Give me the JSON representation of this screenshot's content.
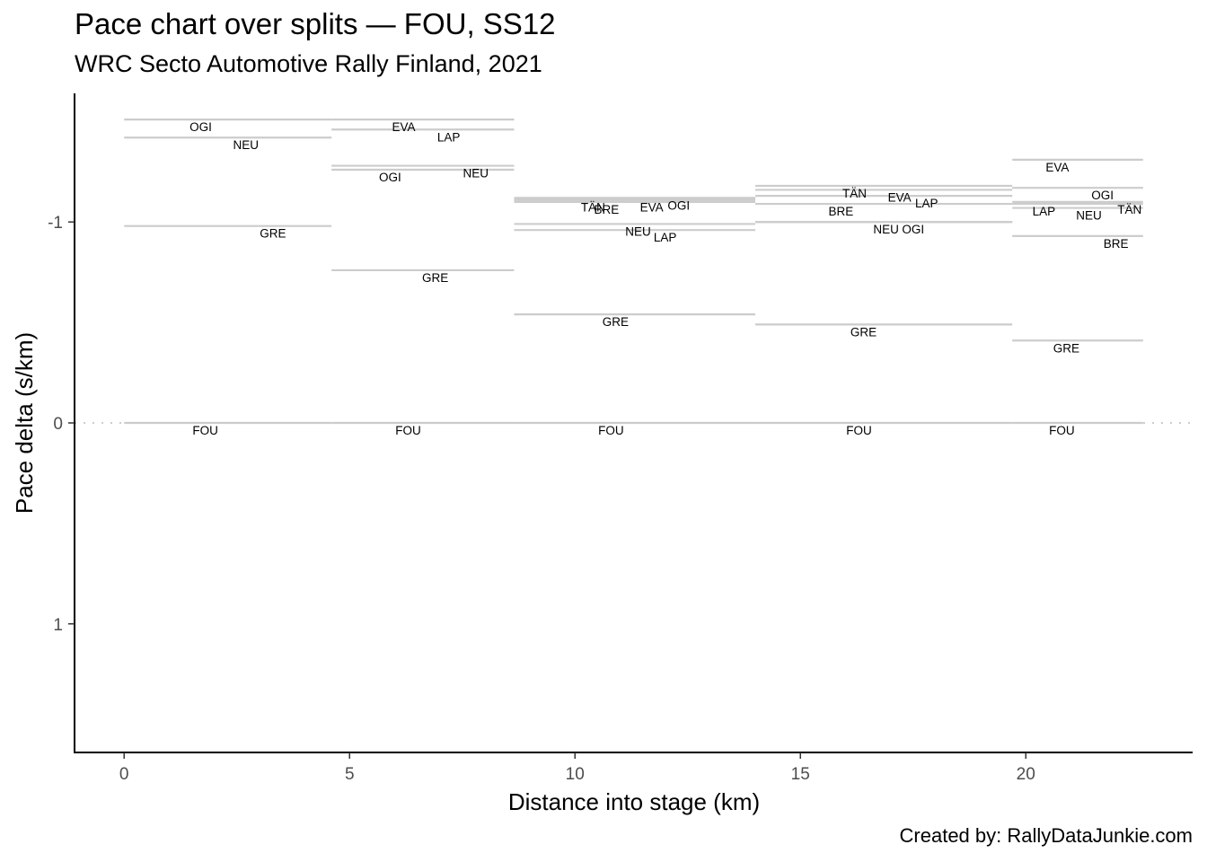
{
  "header": {
    "title": "Pace chart over splits — FOU, SS12",
    "subtitle": "WRC Secto Automotive Rally Finland, 2021"
  },
  "footer": {
    "caption": "Created by: RallyDataJunkie.com"
  },
  "chart_data": {
    "type": "line",
    "title": "Pace chart over splits — FOU, SS12",
    "subtitle": "WRC Secto Automotive Rally Finland, 2021",
    "xlabel": "Distance into stage (km)",
    "ylabel": "Pace delta (s/km)",
    "xlim": [
      -1.1,
      23.7
    ],
    "ylim": [
      1.64,
      -1.64
    ],
    "y_reversed": true,
    "x_ticks": [
      0,
      5,
      10,
      15,
      20
    ],
    "x_tick_labels": [
      "0",
      "5",
      "10",
      "15",
      "20"
    ],
    "y_ticks": [
      -1,
      0,
      1
    ],
    "y_tick_labels": [
      "-1",
      "0",
      "1"
    ],
    "reference_line": {
      "y": 0,
      "style": "dotted",
      "color": "#cccccc"
    },
    "grid": false,
    "segment_color": "#cccccc",
    "splits": [
      {
        "x_start": 0,
        "x_end": 4.6,
        "label_x": 2.0,
        "drivers": [
          {
            "name": "OGI",
            "pace": -1.51
          },
          {
            "name": "NEU",
            "pace": -1.42
          },
          {
            "name": "GRE",
            "pace": -0.98
          },
          {
            "name": "FOU",
            "pace": 0.0
          }
        ]
      },
      {
        "x_start": 4.6,
        "x_end": 8.65,
        "label_x": 6.5,
        "drivers": [
          {
            "name": "EVA",
            "pace": -1.51
          },
          {
            "name": "LAP",
            "pace": -1.46
          },
          {
            "name": "NEU",
            "pace": -1.28
          },
          {
            "name": "OGI",
            "pace": -1.26
          },
          {
            "name": "GRE",
            "pace": -0.76
          },
          {
            "name": "FOU",
            "pace": 0.0
          }
        ]
      },
      {
        "x_start": 8.65,
        "x_end": 14.0,
        "label_x": 11.0,
        "drivers": [
          {
            "name": "BRE",
            "pace": -1.1
          },
          {
            "name": "EVA",
            "pace": -1.11
          },
          {
            "name": "OGI",
            "pace": -1.12
          },
          {
            "name": "TÄN",
            "pace": -1.11
          },
          {
            "name": "NEU",
            "pace": -0.99
          },
          {
            "name": "LAP",
            "pace": -0.96
          },
          {
            "name": "GRE",
            "pace": -0.54
          },
          {
            "name": "FOU",
            "pace": 0.0
          }
        ]
      },
      {
        "x_start": 14.0,
        "x_end": 19.7,
        "label_x": 16.5,
        "drivers": [
          {
            "name": "TÄN",
            "pace": -1.18
          },
          {
            "name": "EVA",
            "pace": -1.16
          },
          {
            "name": "LAP",
            "pace": -1.13
          },
          {
            "name": "BRE",
            "pace": -1.09
          },
          {
            "name": "NEU",
            "pace": -1.0
          },
          {
            "name": "OGI",
            "pace": -1.0
          },
          {
            "name": "GRE",
            "pace": -0.49
          },
          {
            "name": "FOU",
            "pace": 0.0
          }
        ]
      },
      {
        "x_start": 19.7,
        "x_end": 22.6,
        "label_x": 21.0,
        "drivers": [
          {
            "name": "EVA",
            "pace": -1.31
          },
          {
            "name": "OGI",
            "pace": -1.17
          },
          {
            "name": "TÄN",
            "pace": -1.1
          },
          {
            "name": "LAP",
            "pace": -1.09
          },
          {
            "name": "NEU",
            "pace": -1.07
          },
          {
            "name": "BRE",
            "pace": -0.93
          },
          {
            "name": "GRE",
            "pace": -0.41
          },
          {
            "name": "FOU",
            "pace": 0.0
          }
        ]
      }
    ]
  }
}
